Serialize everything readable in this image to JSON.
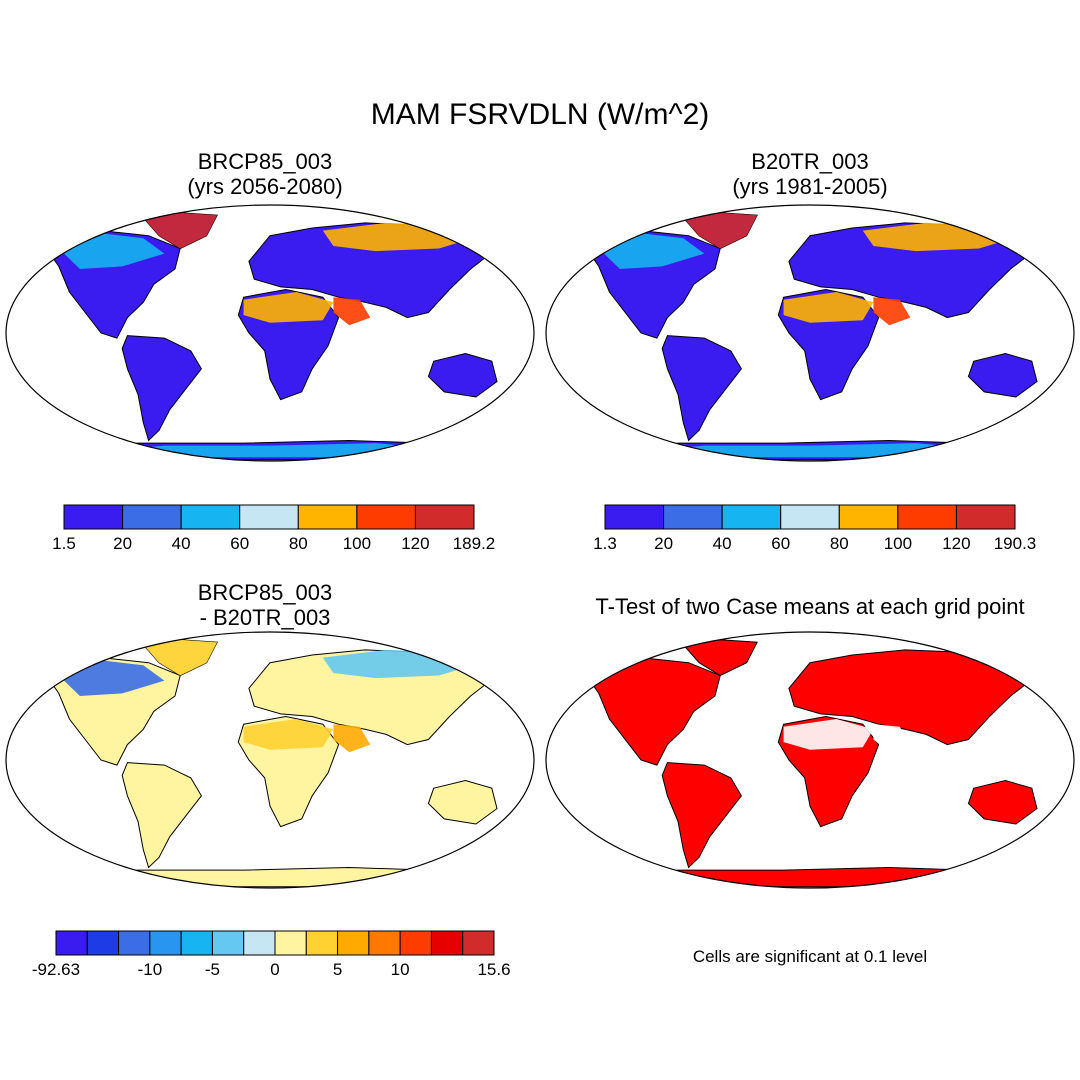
{
  "figure": {
    "title": "MAM FSRVDLN (W/m^2)",
    "colors": {
      "ocean": "#ffffff",
      "coast": "#000000",
      "significant": "#ff0000"
    }
  },
  "panels": [
    {
      "title_line1": "BRCP85_003",
      "title_line2": "(yrs 2056-2080)",
      "colorbar": {
        "colors": [
          "#3a1cf0",
          "#3b6ee6",
          "#16b4f0",
          "#c6e6f4",
          "#ffb400",
          "#ff3c00",
          "#d22b2b"
        ],
        "labels": [
          "1.5",
          "20",
          "40",
          "60",
          "80",
          "100",
          "120",
          "189.2"
        ]
      },
      "land_color": "#3a1cf0",
      "highlights": [
        {
          "region": "sahara",
          "color": "#ffb400"
        },
        {
          "region": "arabia",
          "color": "#ff3c00"
        },
        {
          "region": "greenland",
          "color": "#d22b2b"
        },
        {
          "region": "siberia",
          "color": "#ffb400"
        },
        {
          "region": "canada",
          "color": "#16b4f0"
        },
        {
          "region": "antarctica",
          "color": "#16b4f0"
        }
      ]
    },
    {
      "title_line1": "B20TR_003",
      "title_line2": "(yrs 1981-2005)",
      "colorbar": {
        "colors": [
          "#3a1cf0",
          "#3b6ee6",
          "#16b4f0",
          "#c6e6f4",
          "#ffb400",
          "#ff3c00",
          "#d22b2b"
        ],
        "labels": [
          "1.3",
          "20",
          "40",
          "60",
          "80",
          "100",
          "120",
          "190.3"
        ]
      },
      "land_color": "#3a1cf0",
      "highlights": [
        {
          "region": "sahara",
          "color": "#ffb400"
        },
        {
          "region": "arabia",
          "color": "#ff3c00"
        },
        {
          "region": "greenland",
          "color": "#d22b2b"
        },
        {
          "region": "siberia",
          "color": "#ffb400"
        },
        {
          "region": "canada",
          "color": "#16b4f0"
        },
        {
          "region": "antarctica",
          "color": "#16b4f0"
        }
      ]
    },
    {
      "title_line1": "BRCP85_003",
      "title_line2": "- B20TR_003",
      "colorbar": {
        "colors": [
          "#3a1cf0",
          "#1e3ce6",
          "#3b6ee6",
          "#2896f0",
          "#16b4f0",
          "#64c8f0",
          "#c6e6f4",
          "#fff5a0",
          "#ffd232",
          "#ffaa00",
          "#ff7800",
          "#ff3c00",
          "#e60000",
          "#d22b2b"
        ],
        "labels": [
          "-92.63",
          "-10",
          "-5",
          "0",
          "5",
          "10",
          "15.6"
        ]
      },
      "land_color": "#fff5a0",
      "highlights": [
        {
          "region": "canada",
          "color": "#3b6ee6"
        },
        {
          "region": "siberia",
          "color": "#64c8f0"
        },
        {
          "region": "sahara",
          "color": "#ffd232"
        },
        {
          "region": "arabia",
          "color": "#ffaa00"
        },
        {
          "region": "greenland",
          "color": "#ffd232"
        },
        {
          "region": "antarctica",
          "color": "#fff5a0"
        }
      ]
    },
    {
      "title_line1": "T-Test of two Case means at each grid point",
      "title_line2": "",
      "land_color": "#ff0000",
      "highlights": [
        {
          "region": "sahara",
          "color": "#ffffff"
        },
        {
          "region": "arabia",
          "color": "#ffffff"
        }
      ],
      "note": "Cells are significant at 0.1 level"
    }
  ]
}
